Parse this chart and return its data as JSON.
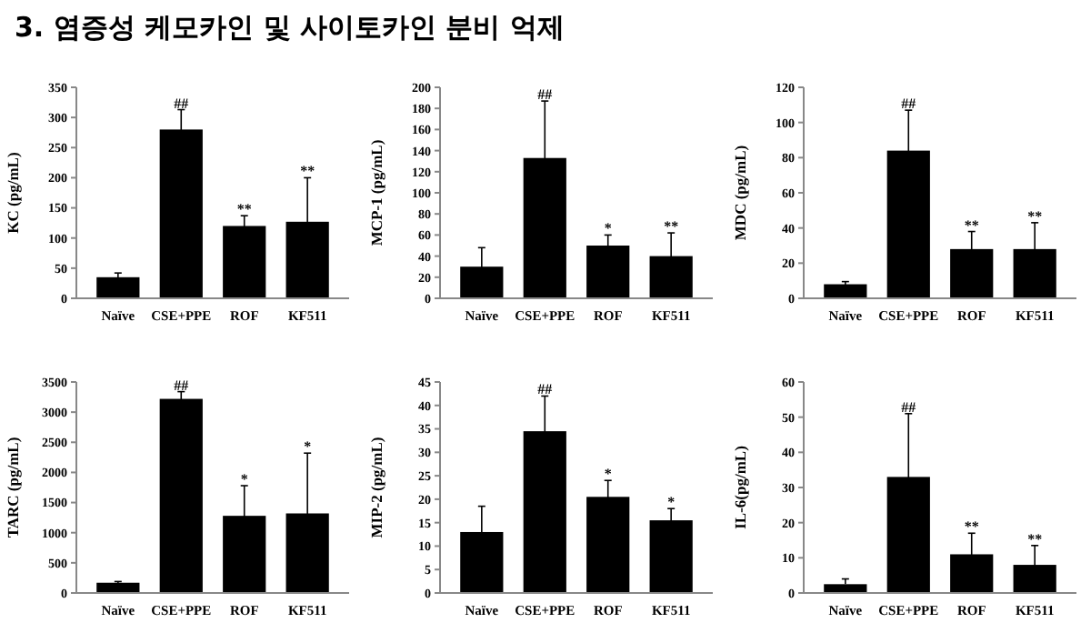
{
  "chart_data": [
    {
      "type": "other",
      "title": "3. 염증성 케모카인 및 사이토카인 분비 억제"
    },
    {
      "type": "bar",
      "ylabel": "KC (pg/mL)",
      "categories": [
        "Naïve",
        "CSE+PPE",
        "ROF",
        "KF511"
      ],
      "values": [
        35,
        280,
        120,
        127
      ],
      "errors": [
        7,
        33,
        17,
        73
      ],
      "color": "#000000",
      "ylim": [
        0,
        350
      ],
      "yticks": [
        0,
        50,
        100,
        150,
        200,
        250,
        300,
        350
      ],
      "grid": false,
      "annotations": [
        {
          "text": "##",
          "x": "CSE+PPE",
          "y": 313
        },
        {
          "text": "**",
          "x": "ROF",
          "y": 137
        },
        {
          "text": "**",
          "x": "KF511",
          "y": 200
        }
      ]
    },
    {
      "type": "bar",
      "ylabel": "MCP-1 (pg/mL)",
      "categories": [
        "Naïve",
        "CSE+PPE",
        "ROF",
        "KF511"
      ],
      "values": [
        30,
        133,
        50,
        40
      ],
      "errors": [
        18,
        54,
        10,
        22
      ],
      "color": "#000000",
      "ylim": [
        0,
        200
      ],
      "yticks": [
        0,
        20,
        40,
        60,
        80,
        100,
        120,
        140,
        160,
        180,
        200
      ],
      "grid": false,
      "annotations": [
        {
          "text": "##",
          "x": "CSE+PPE",
          "y": 187
        },
        {
          "text": "*",
          "x": "ROF",
          "y": 60
        },
        {
          "text": "**",
          "x": "KF511",
          "y": 62
        }
      ]
    },
    {
      "type": "bar",
      "ylabel": "MDC (pg/mL)",
      "categories": [
        "Naïve",
        "CSE+PPE",
        "ROF",
        "KF511"
      ],
      "values": [
        8,
        84,
        28,
        28
      ],
      "errors": [
        1.5,
        23,
        10,
        15
      ],
      "color": "#000000",
      "ylim": [
        0,
        120
      ],
      "yticks": [
        0,
        20,
        40,
        60,
        80,
        100,
        120
      ],
      "grid": false,
      "annotations": [
        {
          "text": "##",
          "x": "CSE+PPE",
          "y": 107
        },
        {
          "text": "**",
          "x": "ROF",
          "y": 38
        },
        {
          "text": "**",
          "x": "KF511",
          "y": 43
        }
      ]
    },
    {
      "type": "bar",
      "ylabel": "TARC (pg/mL)",
      "categories": [
        "Naïve",
        "CSE+PPE",
        "ROF",
        "KF511"
      ],
      "values": [
        170,
        3220,
        1280,
        1320
      ],
      "errors": [
        20,
        120,
        500,
        1000
      ],
      "color": "#000000",
      "ylim": [
        0,
        3500
      ],
      "yticks": [
        0,
        500,
        1000,
        1500,
        2000,
        2500,
        3000,
        3500
      ],
      "grid": false,
      "annotations": [
        {
          "text": "##",
          "x": "CSE+PPE",
          "y": 3340
        },
        {
          "text": "*",
          "x": "ROF",
          "y": 1780
        },
        {
          "text": "*",
          "x": "KF511",
          "y": 2320
        }
      ]
    },
    {
      "type": "bar",
      "ylabel": "MIP-2 (pg/mL)",
      "categories": [
        "Naïve",
        "CSE+PPE",
        "ROF",
        "KF511"
      ],
      "values": [
        13,
        34.5,
        20.5,
        15.5
      ],
      "errors": [
        5.5,
        7.5,
        3.5,
        2.5
      ],
      "color": "#000000",
      "ylim": [
        0,
        45
      ],
      "yticks": [
        0,
        5,
        10,
        15,
        20,
        25,
        30,
        35,
        40,
        45
      ],
      "grid": false,
      "annotations": [
        {
          "text": "##",
          "x": "CSE+PPE",
          "y": 42
        },
        {
          "text": "*",
          "x": "ROF",
          "y": 24
        },
        {
          "text": "*",
          "x": "KF511",
          "y": 18
        }
      ]
    },
    {
      "type": "bar",
      "ylabel": "IL-6(pg/mL)",
      "categories": [
        "Naïve",
        "CSE+PPE",
        "ROF",
        "KF511"
      ],
      "values": [
        2.5,
        33,
        11,
        8
      ],
      "errors": [
        [
          2.5,
          4
        ],
        18,
        6,
        5.5
      ],
      "color": "#000000",
      "ylim": [
        0,
        60
      ],
      "yticks": [
        0,
        10,
        20,
        30,
        40,
        50,
        60
      ],
      "grid": false,
      "annotations": [
        {
          "text": "##",
          "x": "CSE+PPE",
          "y": 51
        },
        {
          "text": "**",
          "x": "ROF",
          "y": 17
        },
        {
          "text": "**",
          "x": "KF511",
          "y": 13.5
        }
      ]
    }
  ]
}
